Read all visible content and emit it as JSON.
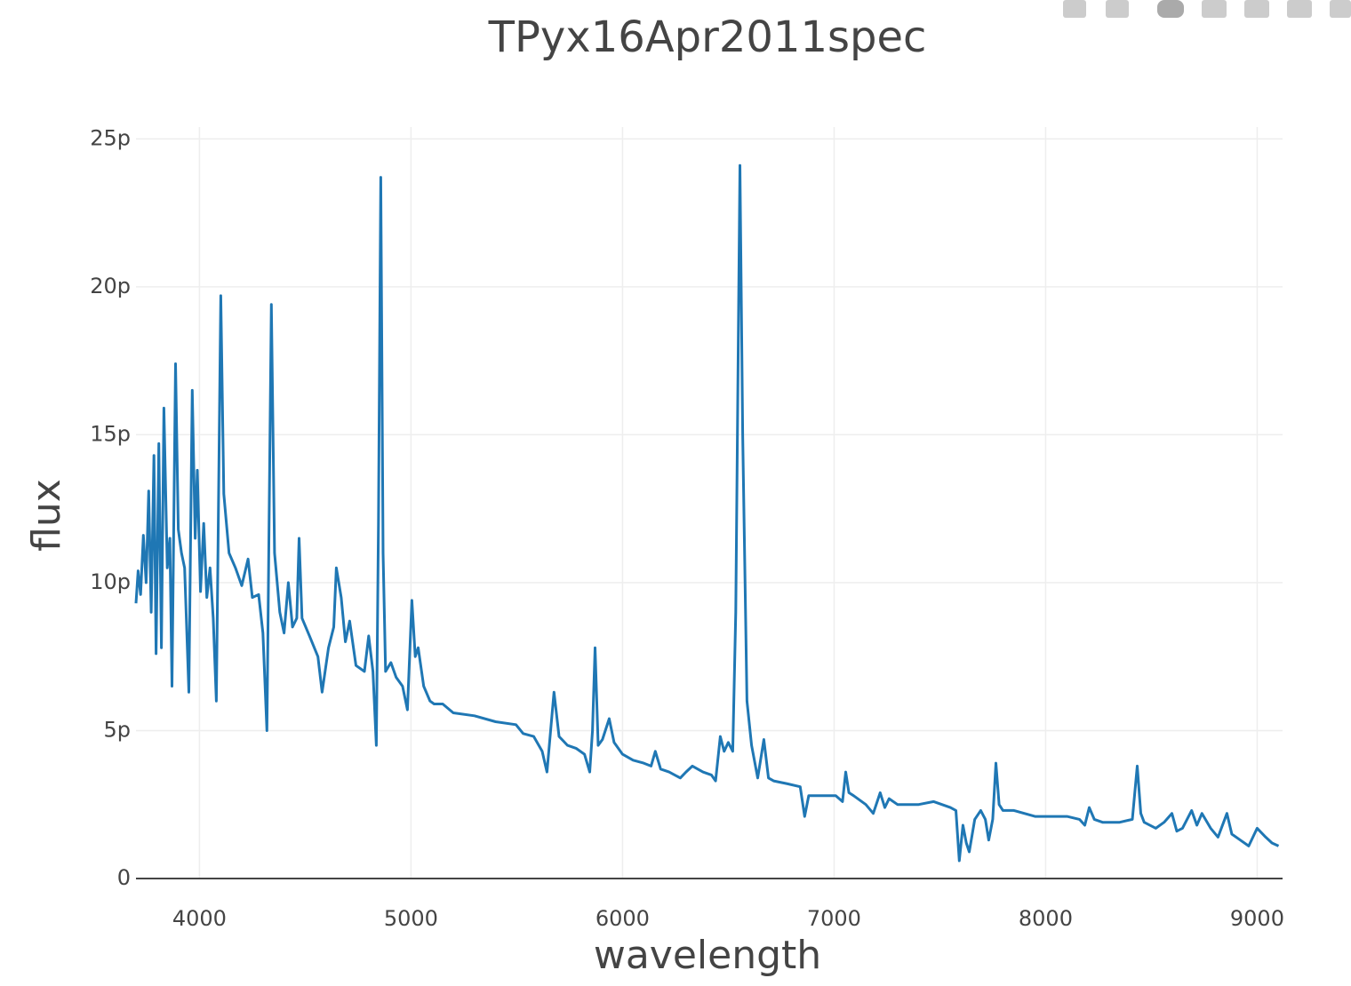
{
  "chart_data": {
    "type": "line",
    "title": "TPyx16Apr2011spec",
    "x_label": "wavelength",
    "y_label": "flux",
    "xlim": [
      3700,
      9120
    ],
    "ylim": [
      0,
      25.4
    ],
    "xticks": [
      4000,
      5000,
      6000,
      7000,
      8000,
      9000
    ],
    "yticks": [
      0,
      {
        "value": 5,
        "label": "5p"
      },
      {
        "value": 10,
        "label": "10p"
      },
      {
        "value": 15,
        "label": "15p"
      },
      {
        "value": 20,
        "label": "20p"
      },
      {
        "value": 25,
        "label": "25p"
      }
    ],
    "grid": true,
    "x": [
      3700,
      3710,
      3722,
      3735,
      3748,
      3760,
      3772,
      3785,
      3795,
      3808,
      3820,
      3832,
      3848,
      3860,
      3870,
      3887,
      3900,
      3915,
      3930,
      3950,
      3966,
      3980,
      3990,
      4005,
      4020,
      4035,
      4050,
      4065,
      4080,
      4101,
      4115,
      4140,
      4170,
      4200,
      4230,
      4250,
      4280,
      4300,
      4319,
      4340,
      4355,
      4380,
      4400,
      4420,
      4440,
      4460,
      4471,
      4485,
      4520,
      4560,
      4580,
      4610,
      4635,
      4647,
      4670,
      4690,
      4710,
      4740,
      4780,
      4800,
      4820,
      4836,
      4846,
      4857,
      4868,
      4880,
      4905,
      4930,
      4960,
      4983,
      5004,
      5020,
      5034,
      5060,
      5090,
      5109,
      5150,
      5200,
      5300,
      5400,
      5496,
      5530,
      5580,
      5620,
      5643,
      5660,
      5676,
      5700,
      5740,
      5780,
      5820,
      5845,
      5858,
      5870,
      5885,
      5905,
      5937,
      5960,
      6000,
      6050,
      6100,
      6135,
      6155,
      6180,
      6220,
      6273,
      6300,
      6330,
      6380,
      6420,
      6440,
      6462,
      6480,
      6500,
      6521,
      6535,
      6555,
      6568,
      6588,
      6610,
      6639,
      6668,
      6690,
      6714,
      6780,
      6840,
      6861,
      6880,
      6940,
      7008,
      7040,
      7055,
      7070,
      7092,
      7150,
      7185,
      7218,
      7240,
      7260,
      7300,
      7400,
      7471,
      7550,
      7576,
      7592,
      7609,
      7625,
      7639,
      7665,
      7693,
      7715,
      7731,
      7750,
      7765,
      7780,
      7798,
      7850,
      7950,
      8101,
      8160,
      8185,
      8206,
      8230,
      8269,
      8350,
      8410,
      8433,
      8450,
      8466,
      8521,
      8560,
      8597,
      8620,
      8647,
      8690,
      8715,
      8739,
      8780,
      8815,
      8857,
      8880,
      8920,
      8960,
      9000,
      9040,
      9070,
      9101
    ],
    "series": [
      {
        "name": "TPyx16Apr2011spec",
        "color": "#1f77b4",
        "values": [
          9.3,
          10.4,
          9.6,
          11.6,
          10.0,
          13.1,
          9.0,
          14.3,
          7.6,
          14.7,
          7.8,
          15.9,
          10.5,
          11.5,
          6.5,
          17.4,
          11.8,
          11.0,
          10.5,
          6.3,
          16.5,
          11.5,
          13.8,
          9.7,
          12.0,
          9.5,
          10.5,
          8.8,
          6.0,
          19.7,
          13.0,
          11.0,
          10.5,
          9.9,
          10.8,
          9.5,
          9.6,
          8.3,
          5.0,
          19.4,
          11.0,
          9.0,
          8.3,
          10.0,
          8.5,
          8.8,
          11.5,
          8.8,
          8.2,
          7.5,
          6.3,
          7.8,
          8.5,
          10.5,
          9.5,
          8.0,
          8.7,
          7.2,
          7.0,
          8.2,
          7.0,
          4.5,
          12,
          23.7,
          11,
          7.0,
          7.3,
          6.8,
          6.5,
          5.7,
          9.4,
          7.5,
          7.8,
          6.5,
          6.0,
          5.9,
          5.9,
          5.6,
          5.5,
          5.3,
          5.2,
          4.9,
          4.8,
          4.3,
          3.6,
          5.0,
          6.3,
          4.8,
          4.5,
          4.4,
          4.2,
          3.6,
          5.0,
          7.8,
          4.5,
          4.7,
          5.4,
          4.6,
          4.2,
          4.0,
          3.9,
          3.8,
          4.3,
          3.7,
          3.6,
          3.4,
          3.6,
          3.8,
          3.6,
          3.5,
          3.3,
          4.8,
          4.3,
          4.6,
          4.3,
          9,
          24.1,
          15,
          6.0,
          4.5,
          3.4,
          4.7,
          3.4,
          3.3,
          3.2,
          3.1,
          2.1,
          2.8,
          2.8,
          2.8,
          2.6,
          3.6,
          2.9,
          2.8,
          2.5,
          2.2,
          2.9,
          2.4,
          2.7,
          2.5,
          2.5,
          2.6,
          2.4,
          2.3,
          0.6,
          1.8,
          1.2,
          0.9,
          2.0,
          2.3,
          2.0,
          1.3,
          2.0,
          3.9,
          2.5,
          2.3,
          2.3,
          2.1,
          2.1,
          2.0,
          1.8,
          2.4,
          2.0,
          1.9,
          1.9,
          2.0,
          3.8,
          2.2,
          1.9,
          1.7,
          1.9,
          2.2,
          1.6,
          1.7,
          2.3,
          1.8,
          2.2,
          1.7,
          1.4,
          2.2,
          1.5,
          1.3,
          1.1,
          1.7,
          1.4,
          1.2,
          1.1
        ]
      }
    ]
  }
}
